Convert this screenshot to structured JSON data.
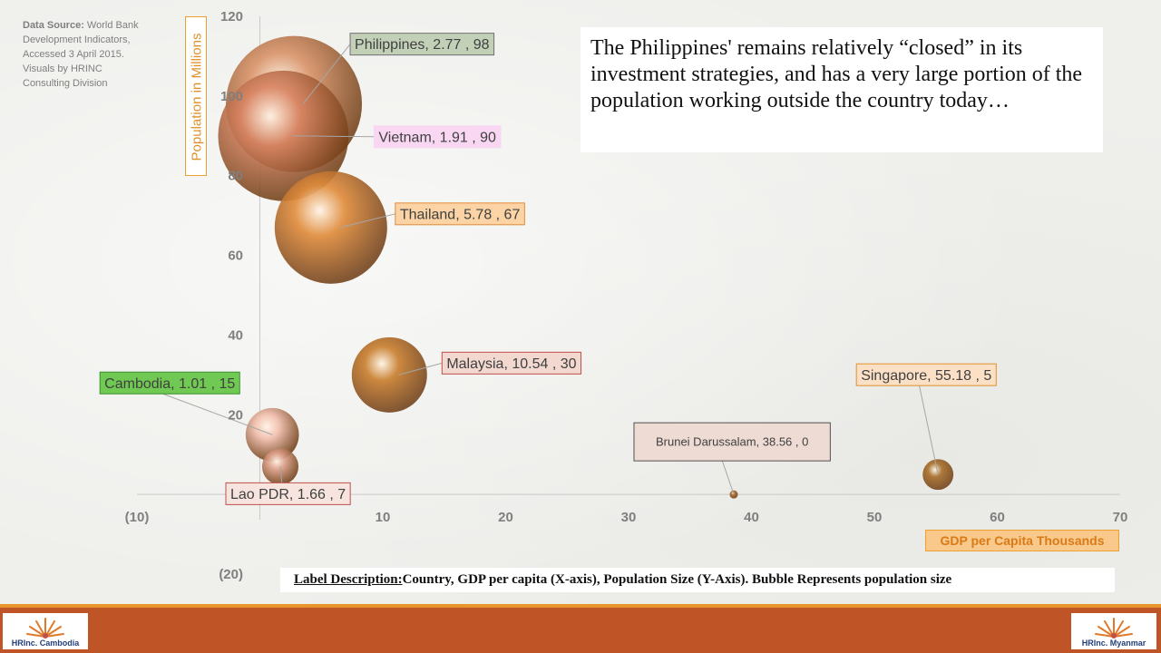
{
  "source_note": {
    "label": "Data Source:",
    "text": "World Bank Development Indicators, Accessed 3 April 2015.  Visuals by HRINC Consulting Division"
  },
  "commentary": "The Philippines' remains relatively “closed” in its investment strategies, and has a very large portion of the population working outside the country today…",
  "label_description": {
    "lead": "Label Description: ",
    "text": "Country, GDP per capita (X-axis), Population Size (Y-Axis).  Bubble Represents population size"
  },
  "logos": {
    "left": {
      "brand": "HRInc.",
      "country": "Cambodia"
    },
    "right": {
      "brand": "HRInc.",
      "country": "Myanmar"
    }
  },
  "chart_data": {
    "type": "scatter",
    "variant": "bubble",
    "xlabel": "GDP per Capita Thousands",
    "ylabel": "Population in Millions",
    "xlim": [
      -10,
      70
    ],
    "ylim": [
      -20,
      120
    ],
    "x_ticks": [
      "(10)",
      "10",
      "20",
      "30",
      "40",
      "50",
      "60",
      "70"
    ],
    "y_ticks": [
      "(20)",
      "20",
      "40",
      "60",
      "80",
      "100",
      "120"
    ],
    "grid": false,
    "points": [
      {
        "label": "Philippines, 2.77 , 98",
        "x": 2.77,
        "y": 98,
        "size": 98,
        "color": "#d9946a",
        "label_bg": "#c3d0b8",
        "label_border": "#6f6f6f"
      },
      {
        "label": "Vietnam, 1.91 , 90",
        "x": 1.91,
        "y": 90,
        "size": 90,
        "color": "#d88462",
        "label_bg": "#f9d7f3",
        "label_border": "#f9d7f3"
      },
      {
        "label": "Thailand, 5.78 , 67",
        "x": 5.78,
        "y": 67,
        "size": 67,
        "color": "#e08c3c",
        "label_bg": "#fbd3a4",
        "label_border": "#e08c3c"
      },
      {
        "label": "Malaysia, 10.54 , 30",
        "x": 10.54,
        "y": 30,
        "size": 30,
        "color": "#c97f2f",
        "label_bg": "#f2d8cf",
        "label_border": "#c0504d"
      },
      {
        "label": "Cambodia, 1.01 , 15",
        "x": 1.01,
        "y": 15,
        "size": 15,
        "color": "#f2bfae",
        "label_bg": "#70c952",
        "label_border": "#3a8f2e"
      },
      {
        "label": "Lao PDR, 1.66 , 7",
        "x": 1.66,
        "y": 7,
        "size": 7,
        "color": "#dea08a",
        "label_bg": "#f7e4de",
        "label_border": "#c0504d"
      },
      {
        "label": "Brunei Darussalam, 38.56 , 0",
        "x": 38.56,
        "y": 0,
        "size": 0,
        "color": "#a8682a",
        "label_bg": "#eedbd4",
        "label_border": "#505050"
      },
      {
        "label": "Singapore, 55.18 , 5",
        "x": 55.18,
        "y": 5,
        "size": 5,
        "color": "#a8702c",
        "label_bg": "#fbe0c6",
        "label_border": "#e0902a"
      }
    ]
  }
}
